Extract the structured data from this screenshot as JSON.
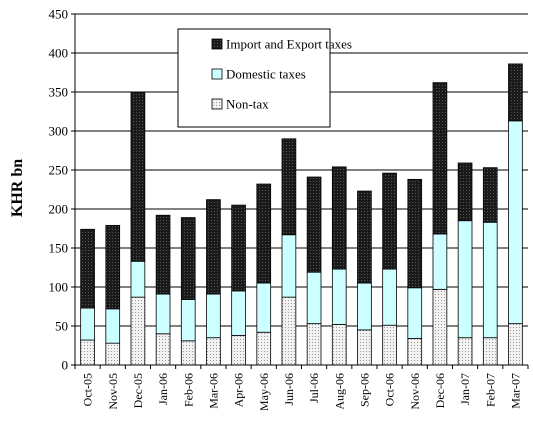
{
  "chart_data": {
    "type": "bar",
    "stacked": true,
    "title": "",
    "xlabel": "",
    "ylabel": "KHR bn",
    "ylim": [
      0,
      450
    ],
    "yticks": [
      0,
      50,
      100,
      150,
      200,
      250,
      300,
      350,
      400,
      450
    ],
    "grid": "horizontal",
    "legend_position": "top-center",
    "categories": [
      "Oct-05",
      "Nov-05",
      "Dec-05",
      "Jan-06",
      "Feb-06",
      "Mar-06",
      "Apr-06",
      "May-06",
      "Jun-06",
      "Jul-06",
      "Aug-06",
      "Sep-06",
      "Oct-06",
      "Nov-06",
      "Dec-06",
      "Jan-07",
      "Feb-07",
      "Mar-07"
    ],
    "series": [
      {
        "name": "Non-tax",
        "color": "#e8e8e8",
        "pattern": "dots",
        "values": [
          32,
          28,
          87,
          40,
          31,
          35,
          38,
          42,
          87,
          53,
          52,
          45,
          51,
          34,
          97,
          35,
          35,
          53
        ]
      },
      {
        "name": "Domestic taxes",
        "color": "#ccffff",
        "pattern": "solid",
        "values": [
          41,
          44,
          46,
          51,
          53,
          56,
          57,
          63,
          80,
          66,
          71,
          60,
          72,
          65,
          71,
          150,
          148,
          260
        ]
      },
      {
        "name": "Import and Export taxes",
        "color": "#1a1a1a",
        "pattern": "dark-dots",
        "values": [
          101,
          107,
          217,
          101,
          105,
          121,
          110,
          127,
          123,
          122,
          131,
          118,
          123,
          139,
          194,
          74,
          70,
          73
        ]
      }
    ],
    "legend_order": [
      "Import and Export taxes",
      "Domestic taxes",
      "Non-tax"
    ]
  }
}
